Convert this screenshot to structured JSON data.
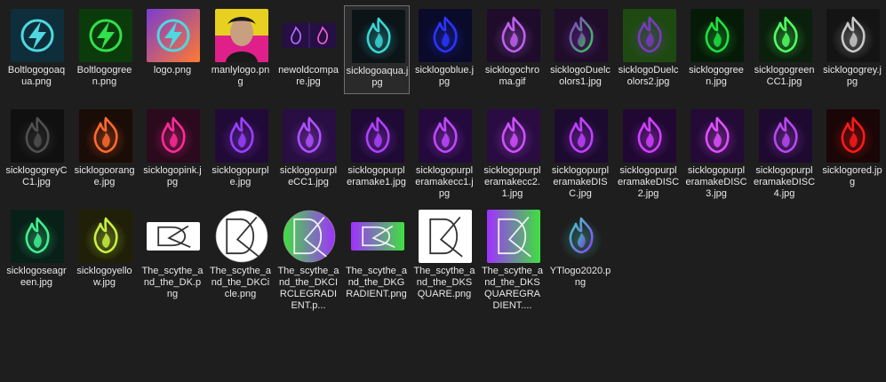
{
  "files": [
    {
      "name": "Boltlogogoaqua.png",
      "kind": "bolt",
      "bg": "#0d2e3a",
      "fg": "#4fd8e0"
    },
    {
      "name": "Boltlogogreen.png",
      "kind": "bolt",
      "bg": "#0b3a0b",
      "fg": "#31e04a"
    },
    {
      "name": "logo.png",
      "kind": "bolt",
      "bg": "#7a3cd0",
      "fg": "#4fd8e0",
      "bg2": "#ff7a30"
    },
    {
      "name": "manlylogo.png",
      "kind": "manly",
      "bg": "#e8d020",
      "fg": "#e0208a"
    },
    {
      "name": "newoldcompare.jpg",
      "kind": "compare",
      "bg": "#250f45",
      "fg": "#c070ff"
    },
    {
      "name": "sicklogoaqua.jpg",
      "kind": "flame",
      "bg": "#0c1418",
      "fg": "#3ad6d6",
      "selected": true
    },
    {
      "name": "sicklogoblue.jpg",
      "kind": "flame",
      "bg": "#0a0a2a",
      "fg": "#2a35ff"
    },
    {
      "name": "sicklogochroma.gif",
      "kind": "flame",
      "bg": "#1e0c2a",
      "fg": "#c060f0"
    },
    {
      "name": "sicklogoDuelcolors1.jpg",
      "kind": "flame",
      "bg": "#200d2a",
      "fg": "#8a3ad0",
      "fg2": "#31d048"
    },
    {
      "name": "sicklogoDuelcolors2.jpg",
      "kind": "flame",
      "bg": "#1e4a12",
      "fg": "#7a3ac0"
    },
    {
      "name": "sicklogogreen.jpg",
      "kind": "flame",
      "bg": "#061a08",
      "fg": "#20e040"
    },
    {
      "name": "sicklogogreenCC1.jpg",
      "kind": "flame",
      "bg": "#0a200c",
      "fg": "#50ff60"
    },
    {
      "name": "sicklogogrey.jpg",
      "kind": "flame",
      "bg": "#141414",
      "fg": "#c8c8c8"
    },
    {
      "name": "sicklogogreyCC1.jpg",
      "kind": "flame",
      "bg": "#101010",
      "fg": "#505050"
    },
    {
      "name": "sicklogoorange.jpg",
      "kind": "flame",
      "bg": "#1a0c06",
      "fg": "#ff6a30"
    },
    {
      "name": "sicklogopink.jpg",
      "kind": "flame",
      "bg": "#2a0a1c",
      "fg": "#ff2a9a"
    },
    {
      "name": "sicklogopurple.jpg",
      "kind": "flame",
      "bg": "#220a38",
      "fg": "#9a40ff"
    },
    {
      "name": "sicklogopurpleCC1.jpg",
      "kind": "flame",
      "bg": "#280e42",
      "fg": "#b050ff"
    },
    {
      "name": "sicklogopurpleramake1.jpg",
      "kind": "flame",
      "bg": "#1e0a34",
      "fg": "#b040ff"
    },
    {
      "name": "sicklogopurpleramakecc1.jpg",
      "kind": "flame",
      "bg": "#240a3c",
      "fg": "#c048ff"
    },
    {
      "name": "sicklogopurpleramakecc2.1.jpg",
      "kind": "flame",
      "bg": "#2a0c42",
      "fg": "#d050ff"
    },
    {
      "name": "sicklogopurpleramakeDISC.jpg",
      "kind": "flame",
      "bg": "#1c0a30",
      "fg": "#c040ff"
    },
    {
      "name": "sicklogopurpleramakeDISC2.jpg",
      "kind": "flame",
      "bg": "#200832",
      "fg": "#d040ff"
    },
    {
      "name": "sicklogopurpleramakeDISC3.jpg",
      "kind": "flame",
      "bg": "#240a36",
      "fg": "#e050ff"
    },
    {
      "name": "sicklogopurpleramakeDISC4.jpg",
      "kind": "flame",
      "bg": "#1e0a30",
      "fg": "#b848f0"
    },
    {
      "name": "sicklogored.jpg",
      "kind": "flame",
      "bg": "#1a0606",
      "fg": "#ff1a1a"
    },
    {
      "name": "sicklogoseagreen.jpg",
      "kind": "flame",
      "bg": "#082018",
      "fg": "#40f090"
    },
    {
      "name": "sicklogoyellow.jpg",
      "kind": "flame",
      "bg": "#202008",
      "fg": "#c8f040"
    },
    {
      "name": "The_scythe_and_the_DK.png",
      "kind": "dk-wide",
      "bg": "#ffffff",
      "fg": "#333333"
    },
    {
      "name": "The_scythe_and_the_DKCicle.png",
      "kind": "dk-circle",
      "bg": "#ffffff",
      "fg": "#333333"
    },
    {
      "name": "The_scythe_and_the_DKCIRCLEGRADIENT.p...",
      "kind": "dk-circle-grad",
      "bg": "#40e040",
      "fg": "#f0f0f0",
      "bg2": "#a030ff"
    },
    {
      "name": "The_scythe_and_the_DKGRADIENT.png",
      "kind": "dk-wide-grad",
      "bg": "#a030ff",
      "fg": "#f0f0f0",
      "bg2": "#40e040"
    },
    {
      "name": "The_scythe_and_the_DKSQUARE.png",
      "kind": "dk-square",
      "bg": "#ffffff",
      "fg": "#333333"
    },
    {
      "name": "The_scythe_and_the_DKSQUAREGRADIENT....",
      "kind": "dk-square-grad",
      "bg": "#a030ff",
      "fg": "#f0f0f0",
      "bg2": "#40e040"
    },
    {
      "name": "YTlogo2020.png",
      "kind": "flame",
      "bg": "#1e1e1e",
      "fg": "#40d0c0",
      "fg2": "#9040ff"
    }
  ]
}
